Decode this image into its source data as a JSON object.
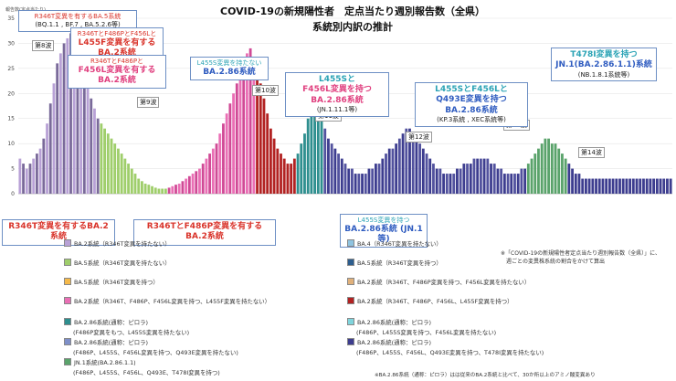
{
  "title": {
    "line1": "COVID-19の新規陽性者　定点当たり週別報告数（全県）",
    "line2": "系統別内訳の推計"
  },
  "header_label": "報告数(定点当たり)",
  "waves": [
    "第8波",
    "第9波",
    "第10波",
    "第11波",
    "第12波",
    "第13波",
    "第14波"
  ],
  "callouts": {
    "c1": {
      "l1": "R346T変異を有するBA.5系統",
      "l2": "(BQ.1.1 , BF.7 , BA.5.2.6等)"
    },
    "c2": {
      "l1": "R346TとF486PとF456Lと",
      "l2": "L455F変異を有するBA.2系統"
    },
    "c3": {
      "l1": "R346TとF486Pと",
      "l2": "F456L変異を有するBA.2系統"
    },
    "c4": {
      "l1": "L455S変異を持たない",
      "l2": "BA.2.86系統"
    },
    "c5": {
      "l1": "L455Sと",
      "l2": "F456L変異を持つBA.2.86系統",
      "l3": "(JN.1.11.1等)"
    },
    "c6": {
      "l1": "L455SとF456Lと",
      "l2": "Q493E変異を持つBA.2.86系統",
      "l3": "(KP.3系統 , XEC系統等)"
    },
    "c7": {
      "l1": "T478I変異を持つ",
      "l2": "JN.1(BA.2.86.1.1)系統",
      "l3": "(NB.1.8.1系統等)"
    },
    "c8": {
      "l1": "R346T変異を有するBA.2系統"
    },
    "c9": {
      "l1": "R346TとF486P変異を有するBA.2系統"
    },
    "c10": {
      "l1": "L455S変異を持つ",
      "l2": "BA.2.86系統 (JN.1等)"
    }
  },
  "legend": {
    "left": [
      {
        "label": "BA.2系統（R346T変異を持たない）",
        "color": "#b8a1d6"
      },
      {
        "label": "BA.5系統（R346T変異を持たない）",
        "color": "#9fce6b"
      },
      {
        "label": "BA.5系統（R346T変異を持つ）",
        "color": "#f5b94a"
      },
      {
        "label": "BA.2系統（R346T、F486P、F456L変異を持つ、L455F変異を持たない）",
        "color": "#ea6fb5"
      },
      {
        "label": "BA.2.86系統(通称：ピロラ)",
        "color": "#2e8f8f"
      },
      {
        "label": "BA.2.86系統(通称：ピロラ)",
        "color": "#7e8fc8"
      },
      {
        "label": "JN.1系統(BA.2.86.1.1)",
        "color": "#5aa36b"
      }
    ],
    "left_sub": [
      "(F486P変異をもつ、L455S変異を持たない)",
      "(F486P、L455S、F456L変異を持つ、Q493E変異を持たない)",
      "(F486P、L455S、F456L、Q493E、T478I変異を持つ)"
    ],
    "right": [
      {
        "label": "BA.4（R346T変異を持たない）",
        "color": "#8ec3e0"
      },
      {
        "label": "BA.5系統（R346T変異を持つ）",
        "color": "#2d5e8e"
      },
      {
        "label": "BA.2系統（R346T、F486P変異を持つ、F456L変異を持たない）",
        "color": "#e0b07a"
      },
      {
        "label": "BA.2系統（R346T、F486P、F456L、L455F変異を持つ）",
        "color": "#b22222"
      },
      {
        "label": "BA.2.86系統(通称：ピロラ)",
        "color": "#7fd4dc"
      },
      {
        "label": "BA.2.86系統(通称：ピロラ)",
        "color": "#3d3d8f"
      }
    ],
    "right_sub": [
      "(F486P、L455S変異を持つ、F456L変異を持たない)",
      "(F486P、L455S、F456L、Q493E変異を持つ、T478I変異を持たない)"
    ],
    "note1": "※「COVID-19の新規陽性者定点当たり週別報告数（全県）」に、",
    "note2": "　週ごとの変異株系統の割合をかけて算出",
    "note3": "※BA.2.86系統（通称：ピロラ）はは従来のBA.2系統と比べて、30か所以上のアミノ酸変異あり"
  },
  "chart_data": {
    "type": "bar",
    "ylim": [
      0,
      35
    ],
    "yticks": [
      0,
      5,
      10,
      15,
      20,
      25,
      30,
      35
    ],
    "values": [
      7,
      6,
      5,
      6,
      7,
      8,
      9,
      11,
      14,
      18,
      22,
      26,
      28,
      30,
      31,
      32,
      31,
      29,
      27,
      24,
      21,
      19,
      17,
      15,
      14,
      13,
      12,
      11,
      10,
      9,
      8,
      7,
      6,
      5,
      4,
      3,
      2.5,
      2,
      1.8,
      1.5,
      1.2,
      1,
      1,
      1,
      1.2,
      1.5,
      1.8,
      2,
      2.5,
      3,
      3.5,
      4,
      4.5,
      5,
      6,
      7,
      8,
      9,
      10,
      12,
      14,
      16,
      18,
      20,
      22,
      24,
      26,
      28,
      29,
      27,
      25,
      22,
      19,
      16,
      13,
      11,
      9,
      8,
      7,
      6,
      6,
      7,
      8,
      10,
      12,
      15,
      17,
      18,
      17,
      15,
      13,
      11,
      10,
      9,
      8,
      7,
      6,
      5,
      5,
      4,
      4,
      4,
      4,
      5,
      5,
      6,
      6,
      7,
      8,
      9,
      9,
      10,
      11,
      12,
      13,
      13,
      12,
      11,
      10,
      9,
      8,
      7,
      6,
      5,
      5,
      4,
      4,
      4,
      4,
      5,
      5,
      6,
      6,
      6,
      7,
      7,
      7,
      7,
      7,
      6,
      6,
      5,
      5,
      4,
      4,
      4,
      4,
      4,
      5,
      5,
      6,
      7,
      8,
      9,
      10,
      11,
      11,
      10,
      10,
      9,
      8,
      7,
      6,
      5,
      4,
      4,
      3,
      3,
      3,
      3,
      3,
      3,
      3,
      3,
      3,
      3,
      3,
      3,
      3,
      3,
      3,
      3,
      3,
      3,
      3,
      3,
      3,
      3,
      3,
      3,
      3,
      3,
      3
    ]
  }
}
